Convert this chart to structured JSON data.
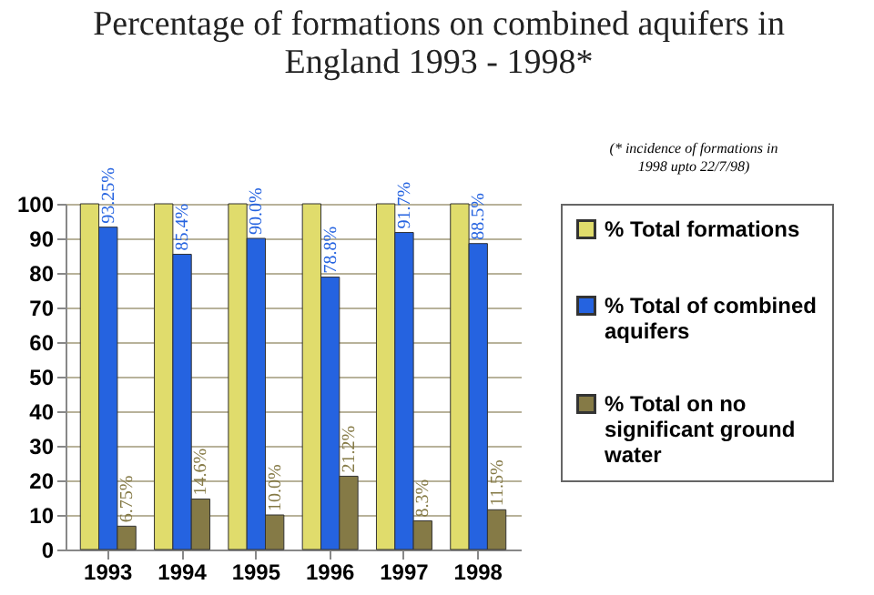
{
  "chart_data": {
    "type": "bar",
    "title": "Percentage of formations on combined aquifers in England 1993 - 1998*",
    "annotations": [
      "(* incidence of formations in 1998 upto 22/7/98)"
    ],
    "categories": [
      "1993",
      "1994",
      "1995",
      "1996",
      "1997",
      "1998"
    ],
    "series": [
      {
        "name": "% Total formations",
        "color": "#e0dc6c",
        "values": [
          100,
          100,
          100,
          100,
          100,
          100
        ]
      },
      {
        "name": "% Total of combined aquifers",
        "color": "#2563e0",
        "values": [
          93.25,
          85.4,
          90.0,
          78.8,
          91.7,
          88.5
        ],
        "value_labels": [
          "93.25%",
          "85.4%",
          "90.0%",
          "78.8%",
          "91.7%",
          "88.5%"
        ]
      },
      {
        "name": "% Total on no significant ground water",
        "color": "#857a46",
        "values": [
          6.75,
          14.6,
          10.0,
          21.2,
          8.3,
          11.5
        ],
        "value_labels": [
          "6.75%",
          "14.6%",
          "10.0%",
          "21.2%",
          "8.3%",
          "11.5%"
        ]
      }
    ],
    "ylim": [
      0,
      100
    ],
    "yticks": [
      0,
      10,
      20,
      30,
      40,
      50,
      60,
      70,
      80,
      90,
      100
    ],
    "grid": "y",
    "legend": "right"
  }
}
